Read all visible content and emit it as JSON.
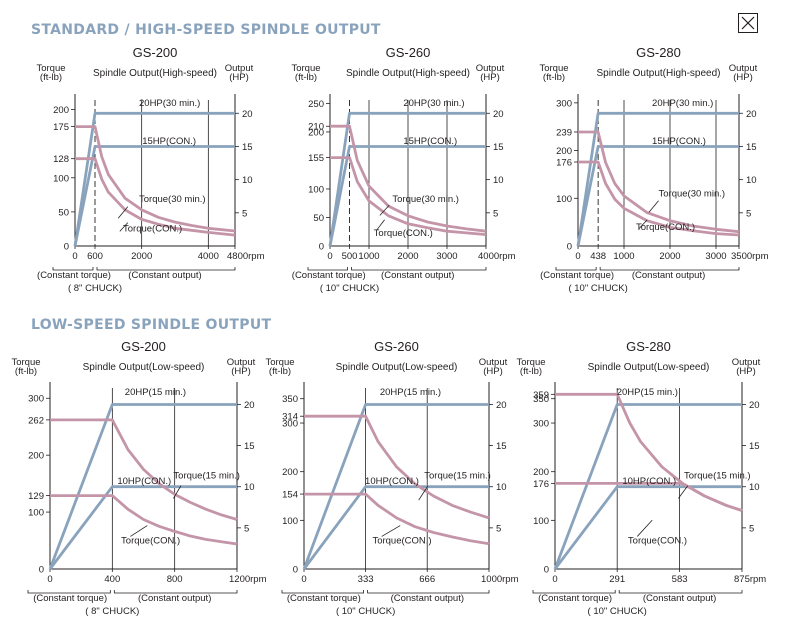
{
  "page": {
    "section1_title": "STANDARD / HIGH-SPEED SPINDLE OUTPUT",
    "section2_title": "LOW-SPEED SPINDLE OUTPUT",
    "close_icon": "close-icon"
  },
  "colors": {
    "power": "#8aa3bd",
    "torque": "#c495a8",
    "axis": "#231f20",
    "heading": "#8aa3bd"
  },
  "chart_data": [
    {
      "type": "line",
      "title": "GS-200",
      "subtitle": "Spindle Output(High-speed)",
      "ylabel_left": [
        "Torque",
        "(ft-lb)"
      ],
      "ylabel_right": [
        "Output",
        "(HP)"
      ],
      "xlim": [
        0,
        4800
      ],
      "ylim_left": [
        0,
        214
      ],
      "ylim_right": [
        0,
        22
      ],
      "x_ticks": [
        {
          "v": 0,
          "t": "0"
        },
        {
          "v": 600,
          "t": "600"
        },
        {
          "v": 2000,
          "t": "2000"
        },
        {
          "v": 4000,
          "t": "4000"
        },
        {
          "v": 4800,
          "t": "4800rpm"
        }
      ],
      "vgrid": [
        2000,
        4000
      ],
      "dashed_at": 600,
      "y_ticks_left": [
        {
          "v": 0,
          "t": "0"
        },
        {
          "v": 50,
          "t": "50"
        },
        {
          "v": 100,
          "t": "100"
        },
        {
          "v": 128,
          "t": "128"
        },
        {
          "v": 175,
          "t": "175"
        },
        {
          "v": 200,
          "t": "200"
        }
      ],
      "y_ticks_right": [
        {
          "v": 5,
          "t": "5"
        },
        {
          "v": 10,
          "t": "10"
        },
        {
          "v": 15,
          "t": "15"
        },
        {
          "v": 20,
          "t": "20"
        }
      ],
      "series": [
        {
          "name": "20HP(30 min.)",
          "kind": "power",
          "x": [
            0,
            600,
            4800
          ],
          "y": [
            0,
            20,
            20
          ]
        },
        {
          "name": "15HP(CON.)",
          "kind": "power",
          "x": [
            0,
            600,
            4800
          ],
          "y": [
            0,
            15,
            15
          ]
        },
        {
          "name": "Torque(30 min.)",
          "kind": "torque",
          "x": [
            0,
            600,
            800,
            1000,
            1500,
            2000,
            2500,
            3000,
            3500,
            4000,
            4800
          ],
          "y": [
            175,
            175,
            131,
            105,
            70,
            53,
            42,
            35,
            30,
            26,
            22
          ]
        },
        {
          "name": "Torque(CON.)",
          "kind": "torque",
          "x": [
            0,
            600,
            800,
            1000,
            1500,
            2000,
            2500,
            3000,
            3500,
            4000,
            4800
          ],
          "y": [
            128,
            128,
            98,
            79,
            53,
            39,
            32,
            26,
            23,
            20,
            16
          ]
        }
      ],
      "labels": {
        "p1": "20HP(30 min.)",
        "p2": "15HP(CON.)",
        "t1": "Torque(30 min.)",
        "t2": "Torque(CON.)"
      },
      "bottom": {
        "left": "(Constant torque)",
        "right": "(Constant output)",
        "chuck": "( 8\" CHUCK)"
      }
    },
    {
      "type": "line",
      "title": "GS-260",
      "subtitle": "Spindle Output(High-speed)",
      "ylabel_left": [
        "Torque",
        "(ft-lb)"
      ],
      "ylabel_right": [
        "Output",
        "(HP)"
      ],
      "xlim": [
        0,
        4000
      ],
      "ylim_left": [
        0,
        256
      ],
      "ylim_right": [
        0,
        22
      ],
      "x_ticks": [
        {
          "v": 0,
          "t": "0"
        },
        {
          "v": 500,
          "t": "500"
        },
        {
          "v": 1000,
          "t": "1000"
        },
        {
          "v": 2000,
          "t": "2000"
        },
        {
          "v": 3000,
          "t": "3000"
        },
        {
          "v": 4000,
          "t": "4000rpm"
        }
      ],
      "vgrid": [
        1000,
        2000,
        3000
      ],
      "dashed_at": 500,
      "y_ticks_left": [
        {
          "v": 0,
          "t": "0"
        },
        {
          "v": 50,
          "t": "50"
        },
        {
          "v": 100,
          "t": "100"
        },
        {
          "v": 155,
          "t": "155"
        },
        {
          "v": 200,
          "t": "200"
        },
        {
          "v": 210,
          "t": "210"
        },
        {
          "v": 250,
          "t": "250"
        }
      ],
      "y_ticks_right": [
        {
          "v": 5,
          "t": "5"
        },
        {
          "v": 10,
          "t": "10"
        },
        {
          "v": 15,
          "t": "15"
        },
        {
          "v": 20,
          "t": "20"
        }
      ],
      "series": [
        {
          "name": "20HP(30 min.)",
          "kind": "power",
          "x": [
            0,
            500,
            4000
          ],
          "y": [
            0,
            20,
            20
          ]
        },
        {
          "name": "15HP(CON.)",
          "kind": "power",
          "x": [
            0,
            500,
            4000
          ],
          "y": [
            0,
            15,
            15
          ]
        },
        {
          "name": "Torque(30 min.)",
          "kind": "torque",
          "x": [
            0,
            500,
            700,
            1000,
            1500,
            2000,
            2500,
            3000,
            3500,
            4000
          ],
          "y": [
            210,
            210,
            150,
            105,
            70,
            53,
            42,
            35,
            30,
            26
          ]
        },
        {
          "name": "Torque(CON.)",
          "kind": "torque",
          "x": [
            0,
            500,
            700,
            1000,
            1500,
            2000,
            2500,
            3000,
            3500,
            4000
          ],
          "y": [
            155,
            155,
            113,
            79,
            53,
            39,
            32,
            26,
            23,
            20
          ]
        }
      ],
      "labels": {
        "p1": "20HP(30 min.)",
        "p2": "15HP(CON.)",
        "t1": "Torque(30 min.)",
        "t2": "Torque(CON.)"
      },
      "bottom": {
        "left": "(Constant torque)",
        "right": "(Constant output)",
        "chuck": "( 10\" CHUCK)"
      }
    },
    {
      "type": "line",
      "title": "GS-280",
      "subtitle": "Spindle Output(High-speed)",
      "ylabel_left": [
        "Torque",
        "(ft-lb)"
      ],
      "ylabel_right": [
        "Output",
        "(HP)"
      ],
      "xlim": [
        0,
        3500
      ],
      "ylim_left": [
        0,
        306
      ],
      "ylim_right": [
        0,
        22
      ],
      "x_ticks": [
        {
          "v": 0,
          "t": "0"
        },
        {
          "v": 438,
          "t": "438"
        },
        {
          "v": 1000,
          "t": "1000"
        },
        {
          "v": 2000,
          "t": "2000"
        },
        {
          "v": 3000,
          "t": "3000"
        },
        {
          "v": 3500,
          "t": "3500rpm"
        }
      ],
      "vgrid": [
        1000,
        2000,
        3000
      ],
      "dashed_at": 438,
      "y_ticks_left": [
        {
          "v": 0,
          "t": "0"
        },
        {
          "v": 100,
          "t": "100"
        },
        {
          "v": 176,
          "t": "176"
        },
        {
          "v": 200,
          "t": "200"
        },
        {
          "v": 239,
          "t": "239"
        },
        {
          "v": 300,
          "t": "300"
        }
      ],
      "y_ticks_right": [
        {
          "v": 5,
          "t": "5"
        },
        {
          "v": 10,
          "t": "10"
        },
        {
          "v": 15,
          "t": "15"
        },
        {
          "v": 20,
          "t": "20"
        }
      ],
      "series": [
        {
          "name": "20HP(30 min.)",
          "kind": "power",
          "x": [
            0,
            438,
            3500
          ],
          "y": [
            0,
            20,
            20
          ]
        },
        {
          "name": "15HP(CON.)",
          "kind": "power",
          "x": [
            0,
            438,
            3500
          ],
          "y": [
            0,
            15,
            15
          ]
        },
        {
          "name": "Torque(30 min.)",
          "kind": "torque",
          "x": [
            0,
            438,
            600,
            800,
            1000,
            1500,
            2000,
            2500,
            3000,
            3500
          ],
          "y": [
            239,
            239,
            175,
            131,
            105,
            70,
            53,
            42,
            35,
            30
          ]
        },
        {
          "name": "Torque(CON.)",
          "kind": "torque",
          "x": [
            0,
            438,
            600,
            800,
            1000,
            1500,
            2000,
            2500,
            3000,
            3500
          ],
          "y": [
            176,
            176,
            131,
            98,
            79,
            53,
            39,
            32,
            26,
            23
          ]
        }
      ],
      "labels": {
        "p1": "20HP(30 min.)",
        "p2": "15HP(CON.)",
        "t1": "Torque(30 min.)",
        "t2": "Torque(CON.)"
      },
      "bottom": {
        "left": "(Constant torque)",
        "right": "(Constant output)",
        "chuck": "( 10\" CHUCK)"
      }
    },
    {
      "type": "line",
      "title": "GS-200",
      "subtitle": "Spindle Output(Low-speed)",
      "ylabel_left": [
        "Torque",
        "(ft-lb)"
      ],
      "ylabel_right": [
        "Output",
        "(HP)"
      ],
      "xlim": [
        0,
        1200
      ],
      "ylim_left": [
        0,
        318
      ],
      "ylim_right": [
        0,
        22
      ],
      "x_ticks": [
        {
          "v": 0,
          "t": "0"
        },
        {
          "v": 400,
          "t": "400"
        },
        {
          "v": 800,
          "t": "800"
        },
        {
          "v": 1200,
          "t": "1200rpm"
        }
      ],
      "vgrid": [
        400,
        800
      ],
      "dashed_at": null,
      "y_ticks_left": [
        {
          "v": 0,
          "t": "0"
        },
        {
          "v": 100,
          "t": "100"
        },
        {
          "v": 129,
          "t": "129"
        },
        {
          "v": 200,
          "t": "200"
        },
        {
          "v": 262,
          "t": "262"
        },
        {
          "v": 300,
          "t": "300"
        }
      ],
      "y_ticks_right": [
        {
          "v": 5,
          "t": "5"
        },
        {
          "v": 10,
          "t": "10"
        },
        {
          "v": 15,
          "t": "15"
        },
        {
          "v": 20,
          "t": "20"
        }
      ],
      "series": [
        {
          "name": "20HP(15 min.)",
          "kind": "power",
          "x": [
            0,
            400,
            1200
          ],
          "y": [
            0,
            20,
            20
          ]
        },
        {
          "name": "10HP(CON.)",
          "kind": "power",
          "x": [
            0,
            400,
            1200
          ],
          "y": [
            0,
            10,
            10
          ]
        },
        {
          "name": "Torque(15 min.)",
          "kind": "torque",
          "x": [
            0,
            400,
            500,
            600,
            700,
            800,
            900,
            1000,
            1100,
            1200
          ],
          "y": [
            262,
            262,
            210,
            175,
            150,
            131,
            117,
            105,
            95,
            87
          ]
        },
        {
          "name": "Torque(CON.)",
          "kind": "torque",
          "x": [
            0,
            400,
            500,
            600,
            700,
            800,
            900,
            1000,
            1100,
            1200
          ],
          "y": [
            129,
            129,
            105,
            87,
            75,
            66,
            58,
            52,
            48,
            44
          ]
        }
      ],
      "labels": {
        "p1": "20HP(15 min.)",
        "p2": "10HP(CON.)",
        "t1": "Torque(15 min.)",
        "t2": "Torque(CON.)"
      },
      "bottom": {
        "left": "(Constant torque)",
        "right": "(Constant output)",
        "chuck": "( 8\" CHUCK)"
      }
    },
    {
      "type": "line",
      "title": "GS-260",
      "subtitle": "Spindle Output(Low-speed)",
      "ylabel_left": [
        "Torque",
        "(ft-lb)"
      ],
      "ylabel_right": [
        "Output",
        "(HP)"
      ],
      "xlim": [
        0,
        1000
      ],
      "ylim_left": [
        0,
        372
      ],
      "ylim_right": [
        0,
        22
      ],
      "x_ticks": [
        {
          "v": 0,
          "t": "0"
        },
        {
          "v": 333,
          "t": "333"
        },
        {
          "v": 666,
          "t": "666"
        },
        {
          "v": 1000,
          "t": "1000rpm"
        }
      ],
      "vgrid": [
        333,
        666
      ],
      "dashed_at": null,
      "y_ticks_left": [
        {
          "v": 0,
          "t": "0"
        },
        {
          "v": 100,
          "t": "100"
        },
        {
          "v": 154,
          "t": "154"
        },
        {
          "v": 200,
          "t": "200"
        },
        {
          "v": 300,
          "t": "300"
        },
        {
          "v": 314,
          "t": "314"
        },
        {
          "v": 350,
          "t": "350"
        }
      ],
      "y_ticks_right": [
        {
          "v": 5,
          "t": "5"
        },
        {
          "v": 10,
          "t": "10"
        },
        {
          "v": 15,
          "t": "15"
        },
        {
          "v": 20,
          "t": "20"
        }
      ],
      "series": [
        {
          "name": "20HP(15 min.)",
          "kind": "power",
          "x": [
            0,
            333,
            1000
          ],
          "y": [
            0,
            20,
            20
          ]
        },
        {
          "name": "10HP(CON.)",
          "kind": "power",
          "x": [
            0,
            333,
            1000
          ],
          "y": [
            0,
            10,
            10
          ]
        },
        {
          "name": "Torque(15 min.)",
          "kind": "torque",
          "x": [
            0,
            333,
            400,
            500,
            600,
            700,
            800,
            900,
            1000
          ],
          "y": [
            314,
            314,
            262,
            210,
            175,
            150,
            131,
            117,
            105
          ]
        },
        {
          "name": "Torque(CON.)",
          "kind": "torque",
          "x": [
            0,
            333,
            400,
            500,
            600,
            700,
            800,
            900,
            1000
          ],
          "y": [
            154,
            154,
            131,
            105,
            87,
            75,
            66,
            58,
            52
          ]
        }
      ],
      "labels": {
        "p1": "20HP(15 min.)",
        "p2": "10HP(CON.)",
        "t1": "Torque(15 min.)",
        "t2": "Torque(CON.)"
      },
      "bottom": {
        "left": "(Constant torque)",
        "right": "(Constant output)",
        "chuck": "( 10\" CHUCK)"
      }
    },
    {
      "type": "line",
      "title": "GS-280",
      "subtitle": "Spindle Output(Low-speed)",
      "ylabel_left": [
        "Torque",
        "(ft-lb)"
      ],
      "ylabel_right": [
        "Output",
        "(HP)"
      ],
      "xlim": [
        0,
        875
      ],
      "ylim_left": [
        0,
        372
      ],
      "ylim_right": [
        0,
        22
      ],
      "x_ticks": [
        {
          "v": 0,
          "t": "0"
        },
        {
          "v": 291,
          "t": "291"
        },
        {
          "v": 583,
          "t": "583"
        },
        {
          "v": 875,
          "t": "875rpm"
        }
      ],
      "vgrid": [
        291,
        583
      ],
      "dashed_at": null,
      "y_ticks_left": [
        {
          "v": 0,
          "t": "0"
        },
        {
          "v": 100,
          "t": "100"
        },
        {
          "v": 176,
          "t": "176"
        },
        {
          "v": 200,
          "t": "200"
        },
        {
          "v": 300,
          "t": "300"
        },
        {
          "v": 350,
          "t": "350"
        },
        {
          "v": 359,
          "t": "359"
        }
      ],
      "y_ticks_right": [
        {
          "v": 5,
          "t": "5"
        },
        {
          "v": 10,
          "t": "10"
        },
        {
          "v": 15,
          "t": "15"
        },
        {
          "v": 20,
          "t": "20"
        }
      ],
      "series": [
        {
          "name": "20HP(15 min.)",
          "kind": "power",
          "x": [
            0,
            291,
            875
          ],
          "y": [
            0,
            20,
            20
          ]
        },
        {
          "name": "10HP(CON.)",
          "kind": "power",
          "x": [
            0,
            291,
            875
          ],
          "y": [
            0,
            10,
            10
          ]
        },
        {
          "name": "Torque(15 min.)",
          "kind": "torque",
          "x": [
            0,
            291,
            350,
            400,
            500,
            600,
            700,
            800,
            875
          ],
          "y": [
            359,
            359,
            300,
            262,
            210,
            175,
            150,
            131,
            120
          ]
        },
        {
          "name": "Torque(CON.)",
          "kind": "torque",
          "x": [
            0,
            291,
            400,
            500,
            583,
            600,
            700,
            800,
            875
          ],
          "y": [
            176,
            176,
            176,
            176,
            176,
            175,
            150,
            131,
            120
          ]
        }
      ],
      "labels": {
        "p1": "20HP(15 min.)",
        "p2": "10HP(CON.)",
        "t1": "Torque(15 min.)",
        "t2": "Torque(CON.)"
      },
      "bottom": {
        "left": "(Constant torque)",
        "right": "(Constant output)",
        "chuck": "( 10\" CHUCK)"
      }
    }
  ]
}
